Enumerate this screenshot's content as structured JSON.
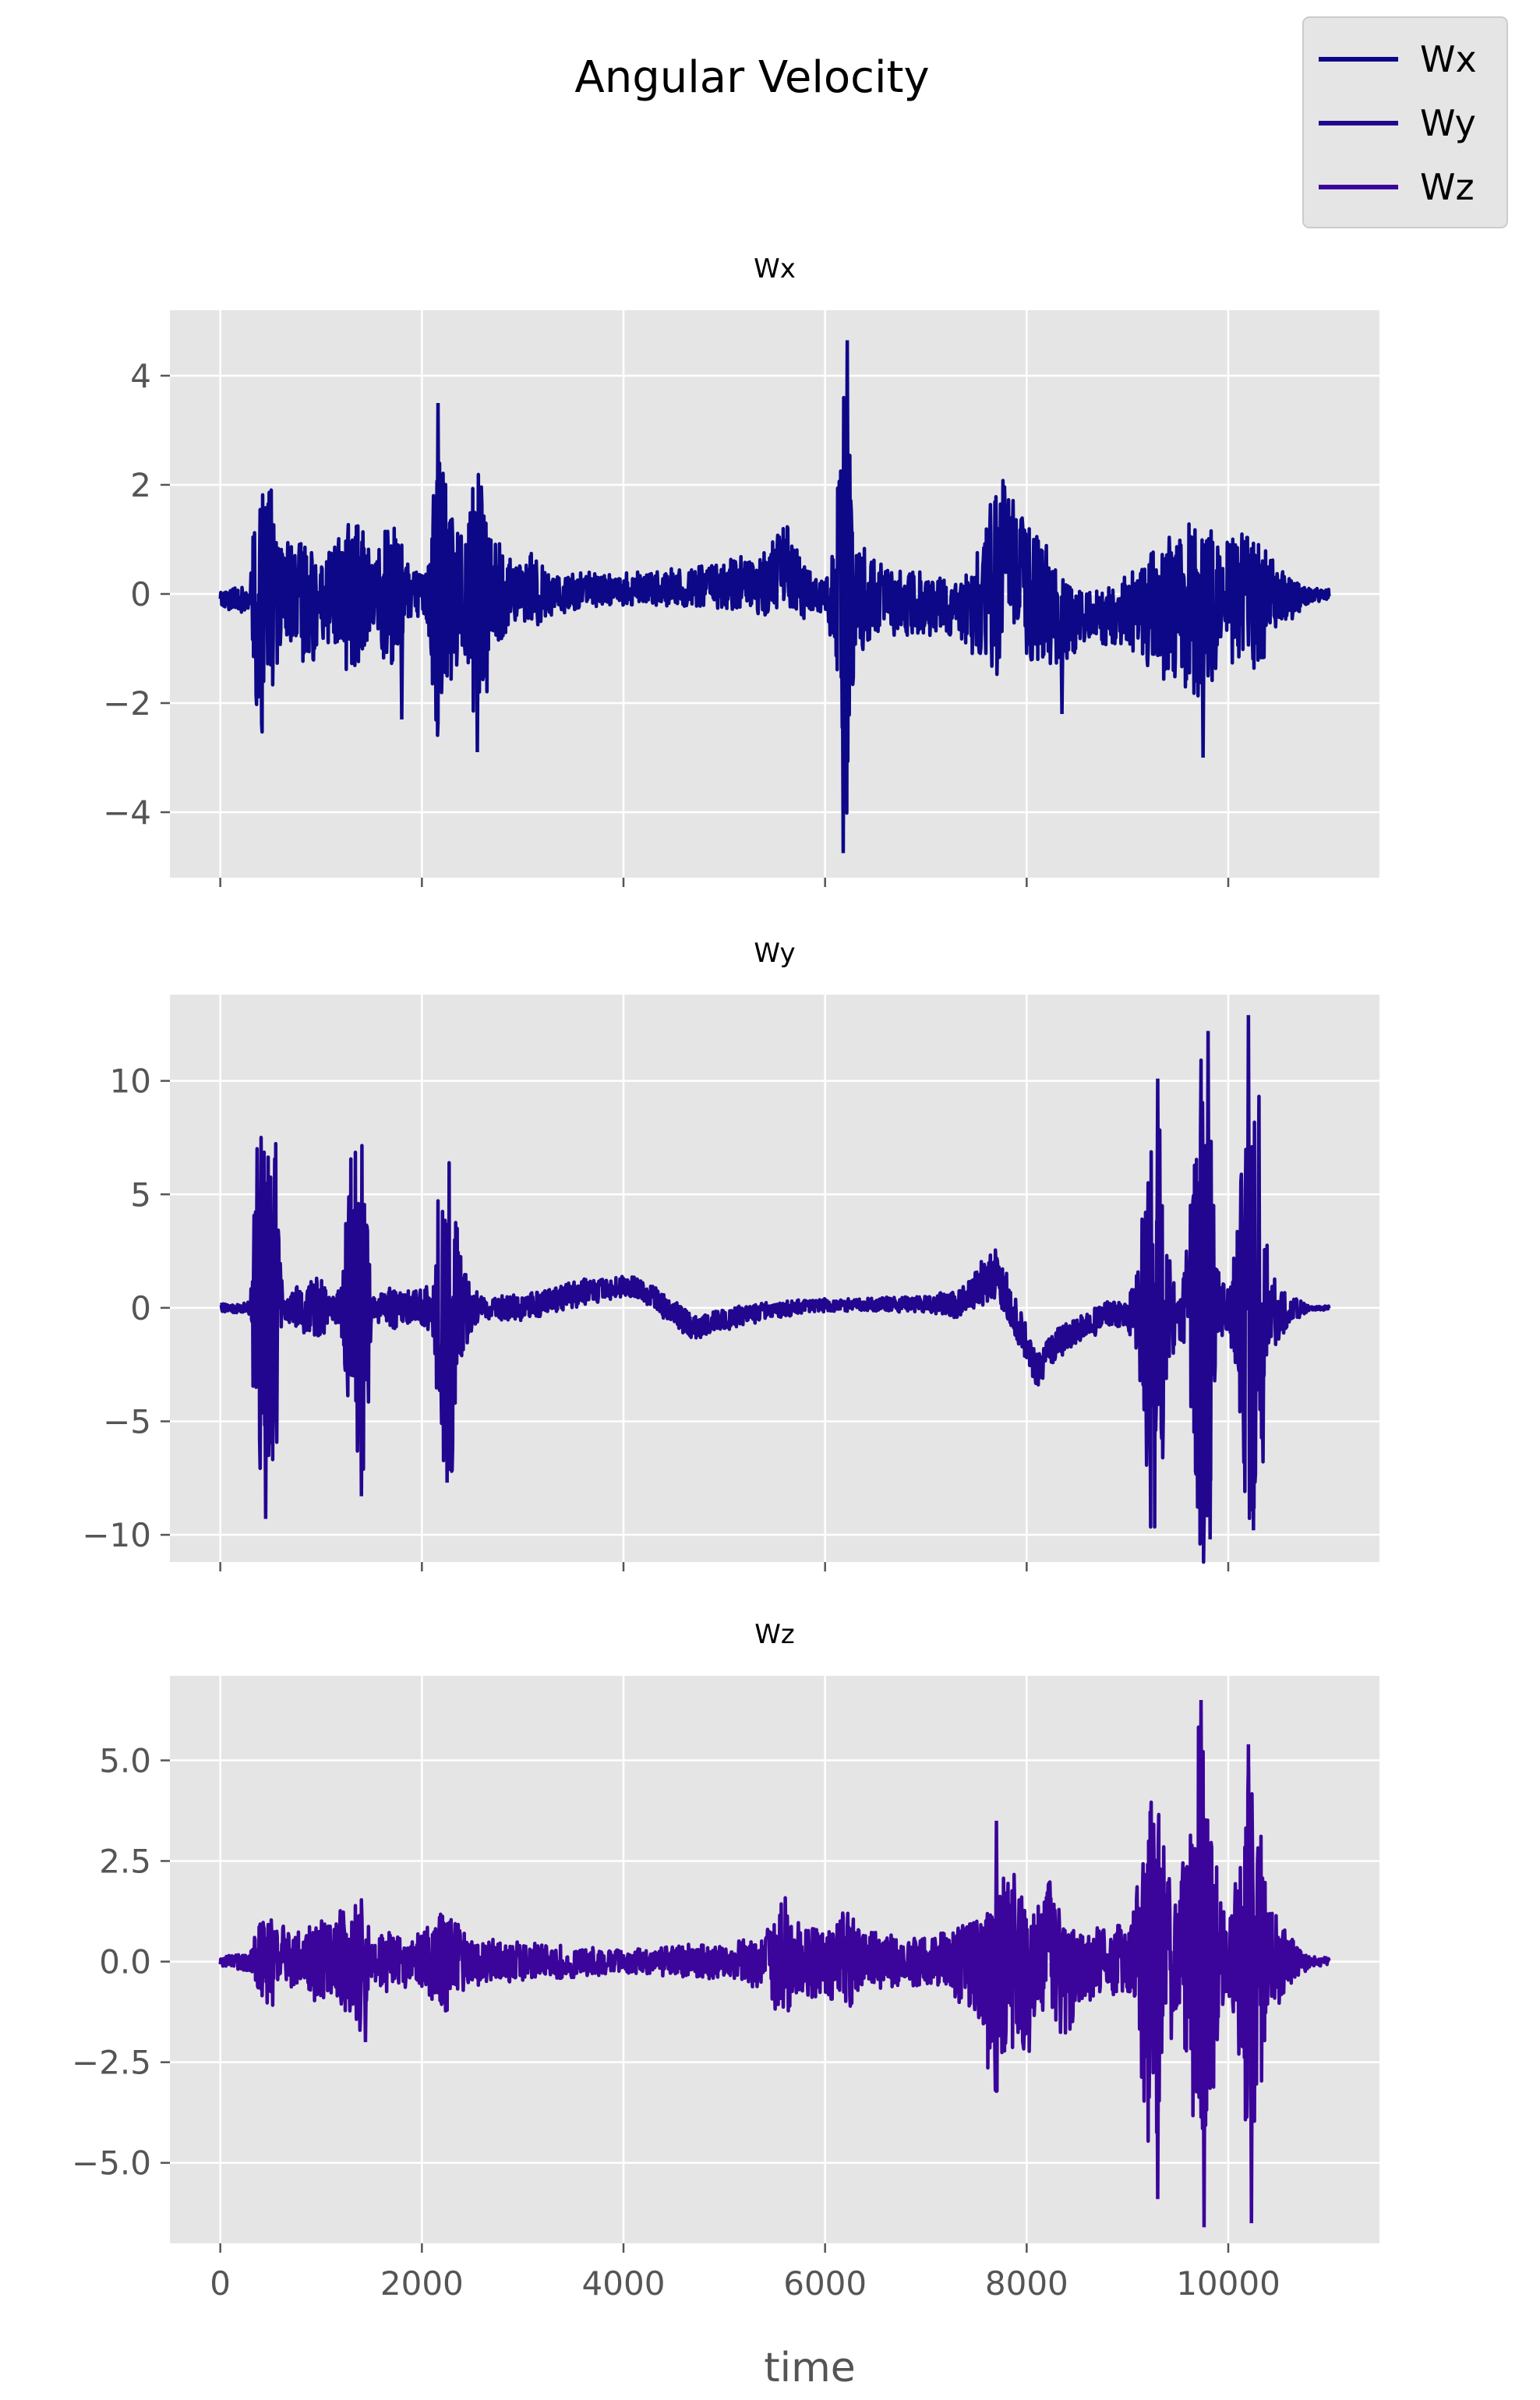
{
  "chart_data": {
    "type": "line",
    "title": "Angular Velocity",
    "xlabel": "time",
    "xlim": [
      -500,
      11500
    ],
    "xticks": [
      0,
      2000,
      4000,
      6000,
      8000,
      10000
    ],
    "grid": true,
    "legend": {
      "placement": "top-right",
      "entries": [
        "Wx",
        "Wy",
        "Wz"
      ]
    },
    "colors": {
      "Wx": "#0d0887",
      "Wy": "#22068f",
      "Wz": "#3b049a",
      "panel_bg": "#e5e5e5",
      "grid": "#ffffff"
    },
    "panels": [
      {
        "name": "Wx",
        "title": "Wx",
        "ylim": [
          -5.2,
          5.2
        ],
        "yticks": [
          -4,
          -2,
          0,
          2,
          4
        ],
        "ytick_labels": [
          "−4",
          "−2",
          "0",
          "2",
          "4"
        ],
        "amplitude_profile": [
          [
            0,
            0.15
          ],
          [
            300,
            0.3
          ],
          [
            350,
            2.5
          ],
          [
            400,
            2.8
          ],
          [
            500,
            2.2
          ],
          [
            600,
            1.0
          ],
          [
            800,
            1.2
          ],
          [
            900,
            1.5
          ],
          [
            1000,
            0.8
          ],
          [
            1200,
            1.3
          ],
          [
            1400,
            1.5
          ],
          [
            1500,
            0.7
          ],
          [
            1700,
            1.6
          ],
          [
            1800,
            1.0
          ],
          [
            1900,
            0.4
          ],
          [
            2050,
            0.6
          ],
          [
            2150,
            3.3
          ],
          [
            2250,
            2.0
          ],
          [
            2400,
            1.2
          ],
          [
            2550,
            2.6
          ],
          [
            2700,
            1.5
          ],
          [
            2900,
            0.6
          ],
          [
            3100,
            0.8
          ],
          [
            3300,
            0.4
          ],
          [
            3600,
            0.35
          ],
          [
            4000,
            0.3
          ],
          [
            4500,
            0.35
          ],
          [
            5000,
            0.45
          ],
          [
            5400,
            0.6
          ],
          [
            5600,
            0.8
          ],
          [
            5800,
            0.5
          ],
          [
            6000,
            0.3
          ],
          [
            6100,
            1.2
          ],
          [
            6200,
            4.6
          ],
          [
            6300,
            1.3
          ],
          [
            6500,
            0.7
          ],
          [
            7000,
            0.6
          ],
          [
            7300,
            0.5
          ],
          [
            7500,
            1.0
          ],
          [
            7700,
            2.1
          ],
          [
            7900,
            1.2
          ],
          [
            8100,
            1.5
          ],
          [
            8300,
            0.9
          ],
          [
            8600,
            0.5
          ],
          [
            8900,
            0.6
          ],
          [
            9100,
            0.9
          ],
          [
            9300,
            1.3
          ],
          [
            9500,
            1.4
          ],
          [
            9700,
            1.8
          ],
          [
            9900,
            1.4
          ],
          [
            10100,
            1.3
          ],
          [
            10300,
            1.5
          ],
          [
            10500,
            0.6
          ],
          [
            10800,
            0.15
          ],
          [
            11000,
            0.1
          ]
        ],
        "offset_profile": [
          [
            0,
            -0.1
          ],
          [
            3000,
            0
          ],
          [
            5400,
            0.2
          ],
          [
            5600,
            0.6
          ],
          [
            5800,
            0
          ],
          [
            7500,
            -0.3
          ],
          [
            7800,
            0.6
          ],
          [
            8300,
            -0.5
          ],
          [
            11000,
            0
          ]
        ],
        "peaks": [
          [
            6220,
            4.65
          ],
          [
            6180,
            -4.75
          ],
          [
            2160,
            3.5
          ],
          [
            8350,
            -2.2
          ],
          [
            9750,
            -3.0
          ],
          [
            2550,
            -2.9
          ],
          [
            1800,
            -2.3
          ]
        ]
      },
      {
        "name": "Wy",
        "title": "Wy",
        "ylim": [
          -11.2,
          13.8
        ],
        "yticks": [
          -10,
          -5,
          0,
          5,
          10
        ],
        "ytick_labels": [
          "−10",
          "−5",
          "0",
          "5",
          "10"
        ],
        "amplitude_profile": [
          [
            0,
            0.2
          ],
          [
            300,
            0.3
          ],
          [
            350,
            7.5
          ],
          [
            450,
            9.0
          ],
          [
            550,
            7.5
          ],
          [
            620,
            0.4
          ],
          [
            800,
            1.2
          ],
          [
            1000,
            1.5
          ],
          [
            1100,
            0.5
          ],
          [
            1200,
            1.0
          ],
          [
            1300,
            7.5
          ],
          [
            1400,
            8.0
          ],
          [
            1450,
            7.0
          ],
          [
            1500,
            0.5
          ],
          [
            1700,
            1.0
          ],
          [
            1900,
            0.8
          ],
          [
            2100,
            1.0
          ],
          [
            2200,
            7.5
          ],
          [
            2300,
            7.8
          ],
          [
            2400,
            2.0
          ],
          [
            2600,
            0.5
          ],
          [
            3000,
            0.6
          ],
          [
            3500,
            0.6
          ],
          [
            4000,
            0.5
          ],
          [
            4500,
            0.6
          ],
          [
            5000,
            0.5
          ],
          [
            5500,
            0.4
          ],
          [
            6000,
            0.3
          ],
          [
            6500,
            0.3
          ],
          [
            7000,
            0.4
          ],
          [
            7400,
            0.8
          ],
          [
            7600,
            1.2
          ],
          [
            7900,
            1.0
          ],
          [
            8200,
            0.8
          ],
          [
            8600,
            0.6
          ],
          [
            9000,
            0.7
          ],
          [
            9100,
            2.0
          ],
          [
            9200,
            9.5
          ],
          [
            9300,
            10.0
          ],
          [
            9400,
            3.0
          ],
          [
            9500,
            1.0
          ],
          [
            9600,
            3.0
          ],
          [
            9700,
            11.5
          ],
          [
            9800,
            12.0
          ],
          [
            9900,
            2.0
          ],
          [
            10000,
            1.0
          ],
          [
            10100,
            4.0
          ],
          [
            10200,
            12.8
          ],
          [
            10300,
            11.0
          ],
          [
            10400,
            2.0
          ],
          [
            10600,
            0.8
          ],
          [
            10800,
            0.1
          ],
          [
            11000,
            0.1
          ]
        ],
        "offset_profile": [
          [
            0,
            0
          ],
          [
            3000,
            0
          ],
          [
            3600,
            0.7
          ],
          [
            4100,
            1.0
          ],
          [
            4300,
            0.4
          ],
          [
            4700,
            -0.9
          ],
          [
            5200,
            -0.3
          ],
          [
            5800,
            0.1
          ],
          [
            7300,
            0.2
          ],
          [
            7700,
            1.5
          ],
          [
            7900,
            -0.5
          ],
          [
            8100,
            -2.8
          ],
          [
            8300,
            -1.5
          ],
          [
            8800,
            -0.3
          ],
          [
            11000,
            0
          ]
        ],
        "peaks": [
          [
            10200,
            12.9
          ],
          [
            9800,
            12.2
          ],
          [
            9300,
            10.1
          ],
          [
            9820,
            -10.2
          ],
          [
            10250,
            -9.8
          ],
          [
            450,
            -9.3
          ],
          [
            1400,
            -8.3
          ],
          [
            2250,
            -7.7
          ]
        ]
      },
      {
        "name": "Wz",
        "title": "Wz",
        "ylim": [
          -7.0,
          7.1
        ],
        "yticks": [
          -5.0,
          -2.5,
          0.0,
          2.5,
          5.0
        ],
        "ytick_labels": [
          "−5.0",
          "−2.5",
          "0.0",
          "2.5",
          "5.0"
        ],
        "amplitude_profile": [
          [
            0,
            0.1
          ],
          [
            300,
            0.3
          ],
          [
            400,
            1.4
          ],
          [
            500,
            1.3
          ],
          [
            700,
            0.7
          ],
          [
            900,
            1.0
          ],
          [
            1100,
            1.1
          ],
          [
            1300,
            1.6
          ],
          [
            1400,
            1.8
          ],
          [
            1500,
            0.6
          ],
          [
            1700,
            0.8
          ],
          [
            1900,
            0.6
          ],
          [
            2100,
            1.0
          ],
          [
            2200,
            1.5
          ],
          [
            2400,
            0.8
          ],
          [
            2600,
            0.6
          ],
          [
            3000,
            0.5
          ],
          [
            3500,
            0.4
          ],
          [
            4000,
            0.3
          ],
          [
            4500,
            0.4
          ],
          [
            5000,
            0.5
          ],
          [
            5400,
            0.7
          ],
          [
            5600,
            1.7
          ],
          [
            5700,
            1.0
          ],
          [
            6000,
            0.9
          ],
          [
            6200,
            1.4
          ],
          [
            6400,
            0.8
          ],
          [
            6800,
            0.6
          ],
          [
            7200,
            0.8
          ],
          [
            7400,
            1.2
          ],
          [
            7600,
            2.2
          ],
          [
            7700,
            2.8
          ],
          [
            7900,
            2.5
          ],
          [
            8100,
            1.5
          ],
          [
            8300,
            2.0
          ],
          [
            8500,
            1.0
          ],
          [
            8800,
            0.8
          ],
          [
            9000,
            1.0
          ],
          [
            9100,
            2.0
          ],
          [
            9200,
            4.6
          ],
          [
            9300,
            4.5
          ],
          [
            9400,
            2.5
          ],
          [
            9500,
            1.5
          ],
          [
            9600,
            3.5
          ],
          [
            9700,
            6.3
          ],
          [
            9800,
            5.0
          ],
          [
            9900,
            2.0
          ],
          [
            10000,
            1.0
          ],
          [
            10100,
            2.5
          ],
          [
            10200,
            5.3
          ],
          [
            10300,
            4.0
          ],
          [
            10400,
            1.5
          ],
          [
            10600,
            0.8
          ],
          [
            10800,
            0.15
          ],
          [
            11000,
            0.1
          ]
        ],
        "offset_profile": [
          [
            0,
            0
          ],
          [
            5500,
            0
          ],
          [
            7500,
            0
          ],
          [
            7700,
            -1.0
          ],
          [
            7900,
            0.3
          ],
          [
            8000,
            -0.5
          ],
          [
            8200,
            0.5
          ],
          [
            8400,
            -0.5
          ],
          [
            8700,
            0
          ],
          [
            11000,
            0
          ]
        ],
        "peaks": [
          [
            9730,
            6.5
          ],
          [
            9760,
            -6.6
          ],
          [
            10200,
            5.4
          ],
          [
            10230,
            -6.5
          ],
          [
            9300,
            -5.9
          ],
          [
            7700,
            3.5
          ],
          [
            1440,
            -2.0
          ]
        ]
      }
    ]
  }
}
